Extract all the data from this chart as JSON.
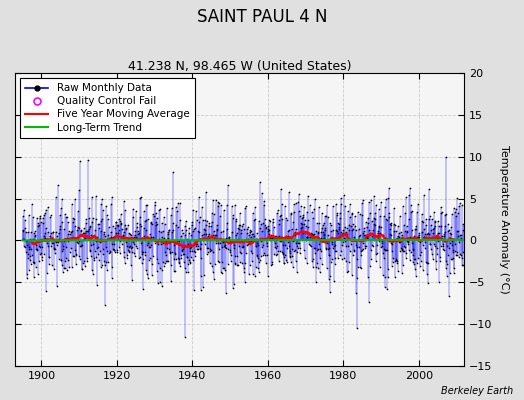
{
  "title": "SAINT PAUL 4 N",
  "subtitle": "41.238 N, 98.465 W (United States)",
  "ylabel": "Temperature Anomaly (°C)",
  "attribution": "Berkeley Earth",
  "xlim": [
    1893,
    2012
  ],
  "ylim": [
    -15,
    20
  ],
  "yticks": [
    -15,
    -10,
    -5,
    0,
    5,
    10,
    15,
    20
  ],
  "xticks": [
    1900,
    1920,
    1940,
    1960,
    1980,
    2000
  ],
  "start_year": 1895,
  "end_year": 2011,
  "raw_color": "#0000ff",
  "moving_avg_color": "#ff0000",
  "trend_color": "#00bb00",
  "qc_color": "#ff00ff",
  "plot_bg_color": "#f5f5f5",
  "fig_bg_color": "#e0e0e0",
  "grid_color": "#cccccc",
  "seed": 42,
  "n_months": 1404,
  "trend_slope": 0.0005,
  "trend_intercept": 0.0,
  "noise_std": 2.5
}
